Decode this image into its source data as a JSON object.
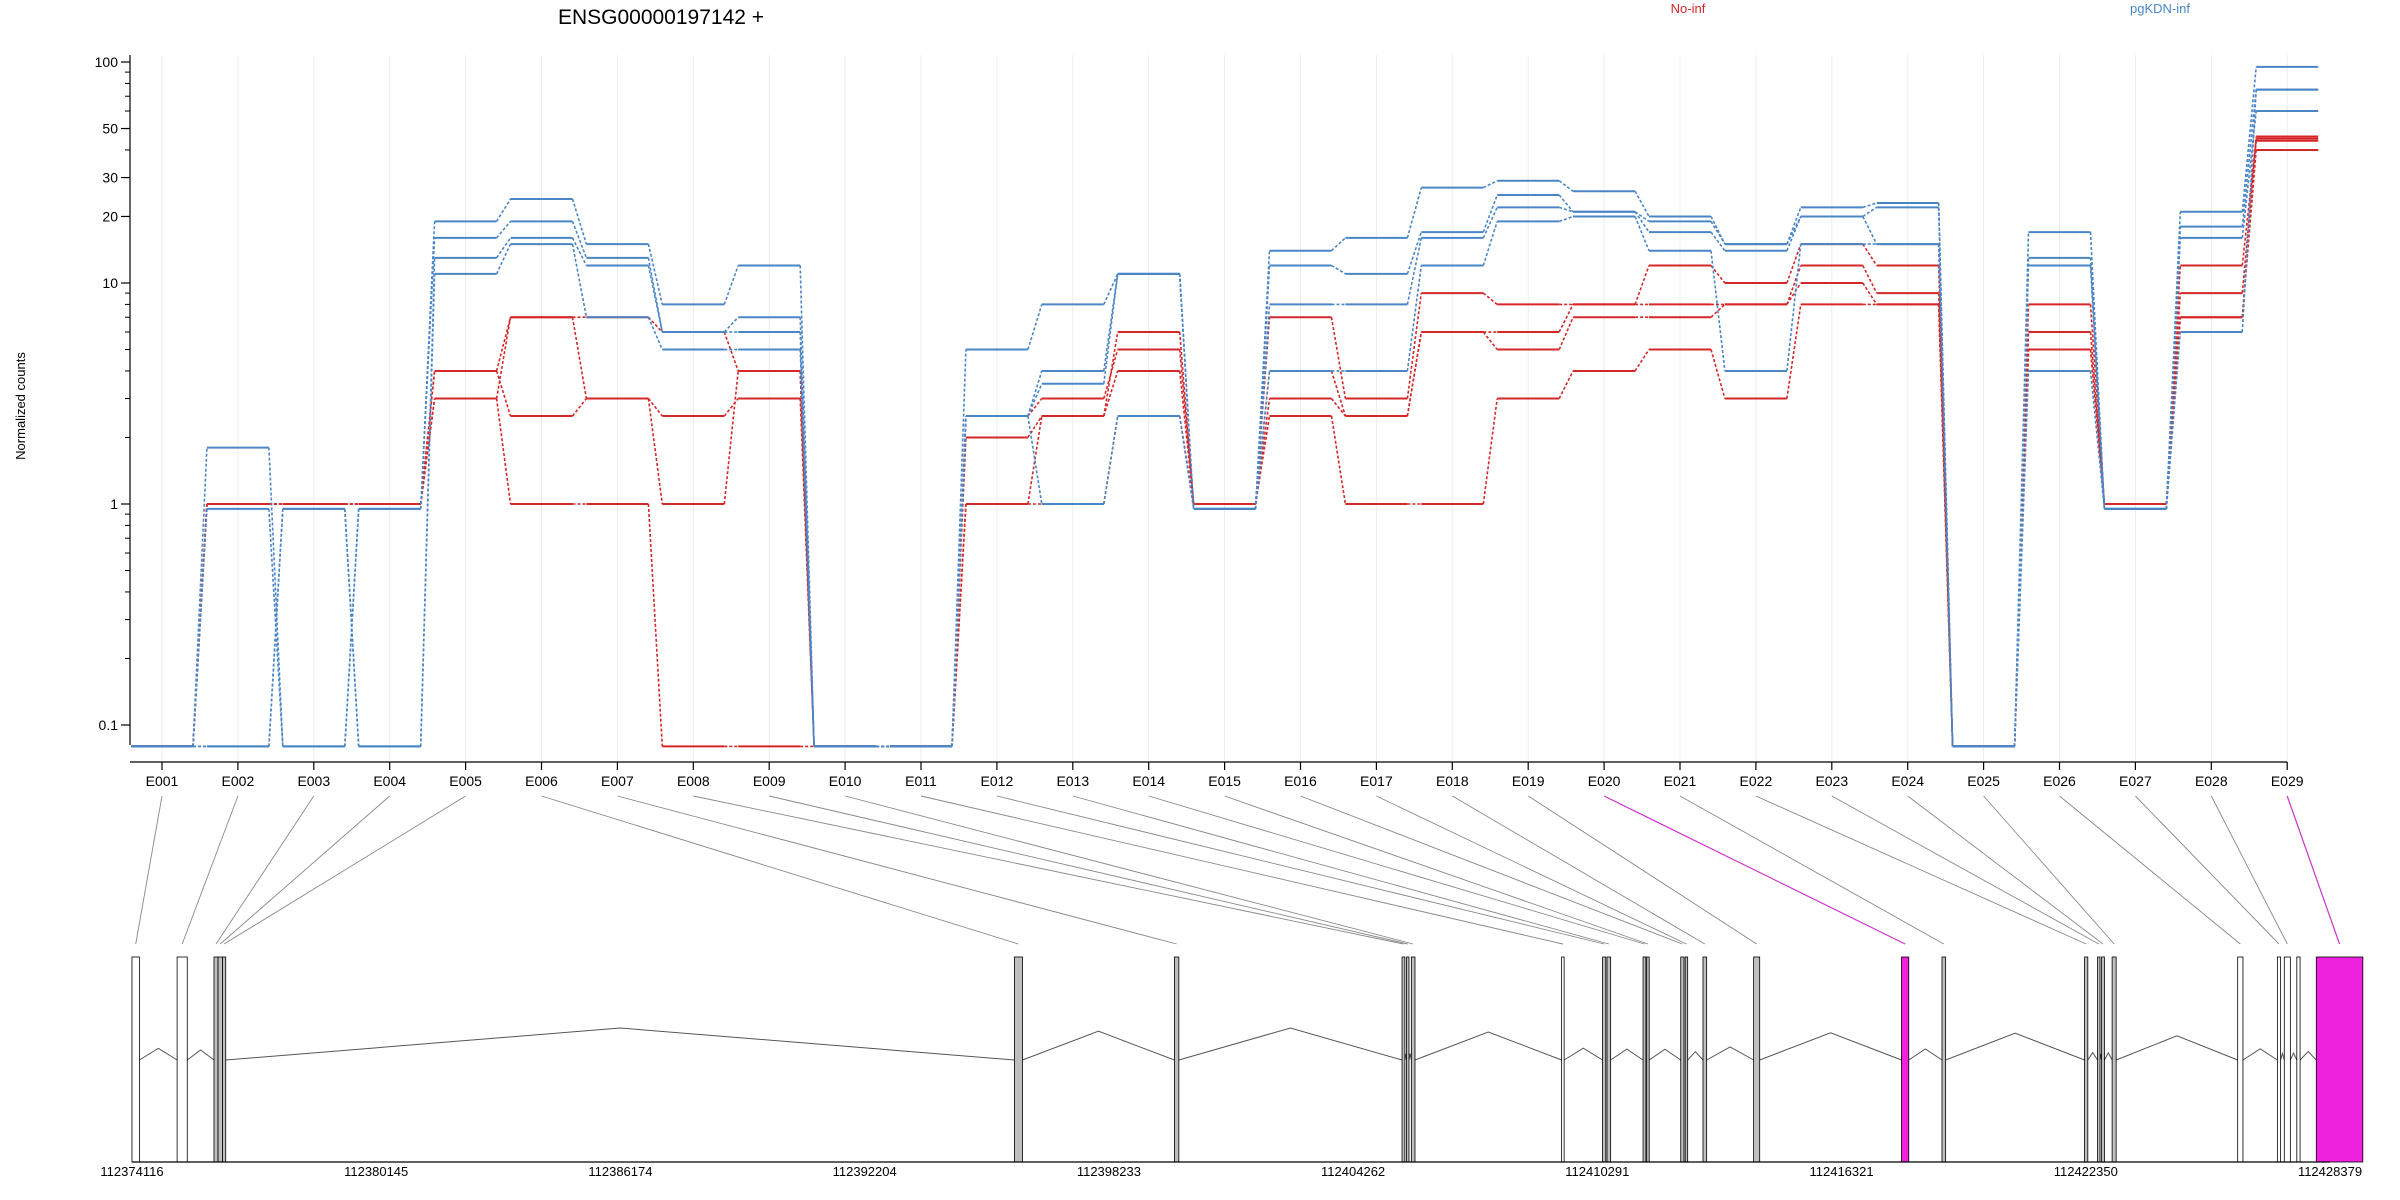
{
  "chart_data": {
    "type": "line",
    "title": "ENSG00000197142 +",
    "ylabel": "Normalized counts",
    "yscale": "log",
    "ylim": [
      0.07,
      110
    ],
    "yticks": [
      0.1,
      1,
      10,
      20,
      30,
      50,
      100
    ],
    "ytick_labels": [
      "0.1",
      "1",
      "10",
      "20",
      "30",
      "50",
      "100"
    ],
    "legend": [
      {
        "label": "No-inf",
        "color": "#d62728"
      },
      {
        "label": "pgKDN-inf",
        "color": "#4a86c6"
      }
    ],
    "categories": [
      "E001",
      "E002",
      "E003",
      "E004",
      "E005",
      "E006",
      "E007",
      "E008",
      "E009",
      "E010",
      "E011",
      "E012",
      "E013",
      "E014",
      "E015",
      "E016",
      "E017",
      "E018",
      "E019",
      "E020",
      "E021",
      "E022",
      "E023",
      "E024",
      "E025",
      "E026",
      "E027",
      "E028",
      "E029"
    ],
    "series": [
      {
        "group": "No-inf",
        "color": "#d62728",
        "values": [
          0.08,
          1,
          1,
          1,
          4,
          7,
          7,
          6,
          4,
          0.08,
          0.08,
          2.5,
          3,
          5,
          1,
          7,
          3,
          9,
          8,
          8,
          12,
          10,
          15,
          12,
          0.08,
          8,
          1,
          12,
          45
        ]
      },
      {
        "group": "No-inf",
        "color": "#d62728",
        "values": [
          0.08,
          1,
          1,
          1,
          3,
          7,
          3,
          2.5,
          3,
          0.08,
          0.08,
          2,
          2.5,
          6,
          1,
          4,
          2.5,
          6,
          6,
          8,
          8,
          8,
          12,
          9,
          0.08,
          6,
          1,
          9,
          44
        ]
      },
      {
        "group": "No-inf",
        "color": "#d62728",
        "values": [
          0.08,
          1,
          1,
          1,
          4,
          2.5,
          3,
          1,
          4,
          0.08,
          0.08,
          1,
          2.5,
          4,
          1,
          3,
          2.5,
          6,
          5,
          7,
          7,
          8,
          10,
          8,
          0.08,
          5,
          1,
          7,
          46
        ]
      },
      {
        "group": "No-inf",
        "color": "#d62728",
        "values": [
          0.08,
          1,
          1,
          1,
          3,
          1,
          1,
          0.08,
          0.08,
          0.08,
          0.08,
          1,
          1,
          2.5,
          1,
          2.5,
          1,
          1,
          3,
          4,
          5,
          3,
          8,
          8,
          0.08,
          5,
          1,
          7,
          40
        ]
      },
      {
        "group": "pgKDN-inf",
        "color": "#4a86c6",
        "values": [
          0.08,
          1.8,
          0.08,
          0.95,
          19,
          24,
          15,
          8,
          12,
          0.08,
          0.08,
          5,
          8,
          11,
          0.95,
          14,
          16,
          27,
          29,
          26,
          20,
          15,
          22,
          23,
          0.08,
          17,
          0.95,
          21,
          95
        ]
      },
      {
        "group": "pgKDN-inf",
        "color": "#4a86c6",
        "values": [
          0.08,
          0.95,
          0.08,
          0.95,
          16,
          19,
          13,
          6,
          7,
          0.08,
          0.08,
          2.5,
          4,
          11,
          0.95,
          12,
          11,
          17,
          25,
          21,
          19,
          15,
          20,
          22,
          0.08,
          13,
          0.95,
          18,
          75
        ]
      },
      {
        "group": "pgKDN-inf",
        "color": "#4a86c6",
        "values": [
          0.08,
          0.08,
          0.95,
          0.08,
          13,
          16,
          12,
          6,
          6,
          0.08,
          0.08,
          2.5,
          3.5,
          11,
          0.95,
          8,
          8,
          16,
          22,
          21,
          17,
          14,
          20,
          15,
          0.08,
          12,
          0.95,
          16,
          60
        ]
      },
      {
        "group": "pgKDN-inf",
        "color": "#4a86c6",
        "values": [
          0.08,
          0.08,
          0.95,
          0.08,
          11,
          15,
          7,
          5,
          5,
          0.08,
          0.08,
          2.5,
          1,
          2.5,
          0.95,
          4,
          4,
          12,
          19,
          20,
          14,
          4,
          15,
          15,
          0.08,
          4,
          0.95,
          6,
          75
        ]
      }
    ],
    "genomic_axis": {
      "labels": [
        "112374116",
        "112380145",
        "112386174",
        "112392204",
        "112398233",
        "112404262",
        "112410291",
        "112416321",
        "112422350",
        "112428379"
      ],
      "start": 112374116,
      "end": 112428379
    },
    "exons": [
      {
        "id": "E001",
        "start": 112374115,
        "end": 112374300,
        "highlight": false,
        "fill": "#ffffff"
      },
      {
        "id": "E002",
        "start": 112375230,
        "end": 112375480,
        "highlight": false,
        "fill": "#ffffff"
      },
      {
        "id": "E003",
        "start": 112376140,
        "end": 112376240,
        "highlight": false,
        "fill": "#bfbfbf"
      },
      {
        "id": "E004",
        "start": 112376240,
        "end": 112376350,
        "highlight": false,
        "fill": "#bfbfbf"
      },
      {
        "id": "E005",
        "start": 112376350,
        "end": 112376430,
        "highlight": false,
        "fill": "#bfbfbf"
      },
      {
        "id": "E006",
        "start": 112395900,
        "end": 112396100,
        "highlight": false,
        "fill": "#bfbfbf"
      },
      {
        "id": "E007",
        "start": 112399850,
        "end": 112399960,
        "highlight": false,
        "fill": "#bfbfbf"
      },
      {
        "id": "E008",
        "start": 112405470,
        "end": 112405540,
        "highlight": false,
        "fill": "#bfbfbf"
      },
      {
        "id": "E009",
        "start": 112405580,
        "end": 112405640,
        "highlight": false,
        "fill": "#bfbfbf"
      },
      {
        "id": "E010",
        "start": 112405700,
        "end": 112405790,
        "highlight": false,
        "fill": "#bfbfbf"
      },
      {
        "id": "E011",
        "start": 112409410,
        "end": 112409470,
        "highlight": false,
        "fill": "#ffffff"
      },
      {
        "id": "E012",
        "start": 112410420,
        "end": 112410500,
        "highlight": false,
        "fill": "#bfbfbf"
      },
      {
        "id": "E013",
        "start": 112410530,
        "end": 112410620,
        "highlight": false,
        "fill": "#bfbfbf"
      },
      {
        "id": "E014",
        "start": 112411420,
        "end": 112411490,
        "highlight": false,
        "fill": "#bfbfbf"
      },
      {
        "id": "E015",
        "start": 112411510,
        "end": 112411560,
        "highlight": false,
        "fill": "#bfbfbf"
      },
      {
        "id": "E016",
        "start": 112412350,
        "end": 112412430,
        "highlight": false,
        "fill": "#bfbfbf"
      },
      {
        "id": "E017",
        "start": 112412460,
        "end": 112412520,
        "highlight": false,
        "fill": "#bfbfbf"
      },
      {
        "id": "E018",
        "start": 112412900,
        "end": 112412990,
        "highlight": false,
        "fill": "#bfbfbf"
      },
      {
        "id": "E019",
        "start": 112414150,
        "end": 112414300,
        "highlight": false,
        "fill": "#bfbfbf"
      },
      {
        "id": "E020",
        "start": 112417800,
        "end": 112417980,
        "highlight": true,
        "fill": "#ee22dd"
      },
      {
        "id": "E021",
        "start": 112418800,
        "end": 112418890,
        "highlight": false,
        "fill": "#bfbfbf"
      },
      {
        "id": "E022",
        "start": 112422320,
        "end": 112422400,
        "highlight": false,
        "fill": "#bfbfbf"
      },
      {
        "id": "E023",
        "start": 112422640,
        "end": 112422700,
        "highlight": false,
        "fill": "#bfbfbf"
      },
      {
        "id": "E024",
        "start": 112422740,
        "end": 112422810,
        "highlight": false,
        "fill": "#bfbfbf"
      },
      {
        "id": "E025",
        "start": 112423000,
        "end": 112423100,
        "highlight": false,
        "fill": "#bfbfbf"
      },
      {
        "id": "E026",
        "start": 112426100,
        "end": 112426230,
        "highlight": false,
        "fill": "#ffffff"
      },
      {
        "id": "E027",
        "start": 112427080,
        "end": 112427160,
        "highlight": false,
        "fill": "#ffffff"
      },
      {
        "id": "E028",
        "start": 112427250,
        "end": 112427400,
        "highlight": false,
        "fill": "#ffffff"
      },
      {
        "id": "E029",
        "start": 112427560,
        "end": 112427640,
        "highlight": false,
        "fill": "#ffffff"
      },
      {
        "id": "E029b",
        "start": 112428040,
        "end": 112429190,
        "highlight": true,
        "fill": "#ee22dd"
      }
    ]
  }
}
